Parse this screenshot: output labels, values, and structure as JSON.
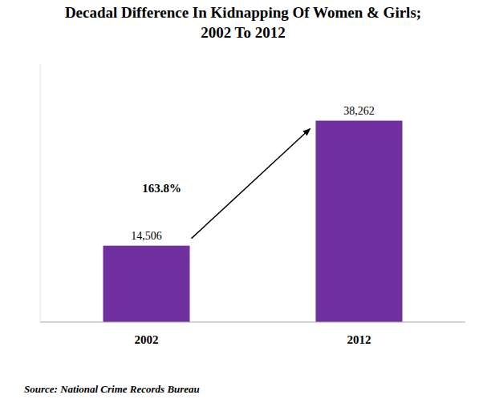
{
  "chart_data": {
    "type": "bar",
    "title": "Decadal Difference In Kidnapping Of Women & Girls; 2002 To 2012",
    "categories": [
      "2002",
      "2012"
    ],
    "values": [
      14506,
      38262
    ],
    "value_labels": [
      "14,506",
      "38,262"
    ],
    "data_labels": true,
    "color": "#7030a0",
    "ylim": [
      0,
      49000
    ],
    "tick_labels": "x",
    "grid": false,
    "annotations": [
      "163.8%"
    ],
    "source": "Source: National Crime Records Bureau"
  }
}
